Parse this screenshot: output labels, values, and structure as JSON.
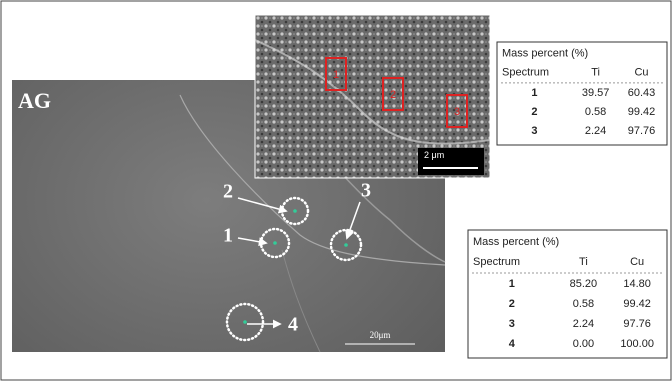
{
  "image_label": "AG",
  "main": {
    "scale_bar": "20μm",
    "points": [
      "1",
      "2",
      "3",
      "4"
    ]
  },
  "inset": {
    "scale_bar": "2 μm",
    "regions": [
      "1",
      "2",
      "3"
    ]
  },
  "table_top": {
    "title": "Mass percent (%)",
    "header": [
      "Spectrum",
      "Ti",
      "Cu"
    ],
    "rows": [
      [
        "1",
        "39.57",
        "60.43"
      ],
      [
        "2",
        "0.58",
        "99.42"
      ],
      [
        "3",
        "2.24",
        "97.76"
      ]
    ]
  },
  "table_bottom": {
    "title": "Mass percent (%)",
    "header": [
      "Spectrum",
      "Ti",
      "Cu"
    ],
    "rows": [
      [
        "1",
        "85.20",
        "14.80"
      ],
      [
        "2",
        "0.58",
        "99.42"
      ],
      [
        "3",
        "2.24",
        "97.76"
      ],
      [
        "4",
        "0.00",
        "100.00"
      ]
    ]
  }
}
